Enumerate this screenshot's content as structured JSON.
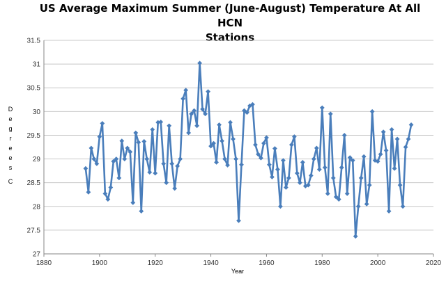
{
  "chart_data": {
    "type": "line",
    "title": {
      "line1": "US Average Maximum Summer (June-August) Temperature At All HCN",
      "line2": "Stations"
    },
    "xlabel": "Year",
    "ylabel_letters": [
      "D",
      "e",
      "g",
      "r",
      "e",
      "e",
      "s",
      "C"
    ],
    "xlim": [
      1880,
      2020
    ],
    "ylim": [
      27,
      31.5
    ],
    "x_ticks": [
      "1880",
      "1900",
      "1920",
      "1940",
      "1960",
      "1980",
      "2000",
      "2020"
    ],
    "y_ticks": [
      "27",
      "27.5",
      "28",
      "28.5",
      "29",
      "29.5",
      "30",
      "30.5",
      "31",
      "31.5"
    ],
    "grid": "horizontal",
    "legend": "none",
    "series_color": "#4A7EBB",
    "x": [
      1895,
      1896,
      1897,
      1898,
      1899,
      1900,
      1901,
      1902,
      1903,
      1904,
      1905,
      1906,
      1907,
      1908,
      1909,
      1910,
      1911,
      1912,
      1913,
      1914,
      1915,
      1916,
      1917,
      1918,
      1919,
      1920,
      1921,
      1922,
      1923,
      1924,
      1925,
      1926,
      1927,
      1928,
      1929,
      1930,
      1931,
      1932,
      1933,
      1934,
      1935,
      1936,
      1937,
      1938,
      1939,
      1940,
      1941,
      1942,
      1943,
      1944,
      1945,
      1946,
      1947,
      1948,
      1949,
      1950,
      1951,
      1952,
      1953,
      1954,
      1955,
      1956,
      1957,
      1958,
      1959,
      1960,
      1961,
      1962,
      1963,
      1964,
      1965,
      1966,
      1967,
      1968,
      1969,
      1970,
      1971,
      1972,
      1973,
      1974,
      1975,
      1976,
      1977,
      1978,
      1979,
      1980,
      1981,
      1982,
      1983,
      1984,
      1985,
      1986,
      1987,
      1988,
      1989,
      1990,
      1991,
      1992,
      1993,
      1994,
      1995,
      1996,
      1997,
      1998,
      1999,
      2000,
      2001,
      2002,
      2003,
      2004,
      2005,
      2006,
      2007,
      2008,
      2009,
      2010,
      2011,
      2012
    ],
    "y": [
      28.8,
      28.3,
      29.23,
      29.0,
      28.9,
      29.47,
      29.75,
      28.27,
      28.15,
      28.4,
      28.95,
      29.0,
      28.6,
      29.38,
      29.0,
      29.23,
      29.15,
      28.08,
      29.55,
      29.35,
      27.9,
      29.37,
      29.0,
      28.72,
      29.62,
      28.7,
      29.77,
      29.78,
      28.9,
      28.5,
      29.7,
      28.9,
      28.38,
      28.85,
      29.0,
      30.27,
      30.45,
      29.55,
      29.95,
      30.02,
      29.7,
      31.02,
      30.05,
      29.95,
      30.42,
      29.27,
      29.33,
      28.93,
      29.72,
      29.38,
      29.0,
      28.87,
      29.77,
      29.42,
      29.0,
      27.7,
      28.88,
      30.02,
      29.98,
      30.12,
      30.15,
      29.3,
      29.1,
      29.02,
      29.33,
      29.45,
      28.88,
      28.62,
      29.22,
      28.78,
      28.0,
      28.97,
      28.4,
      28.6,
      29.3,
      29.47,
      28.7,
      28.5,
      28.93,
      28.43,
      28.45,
      28.65,
      29.0,
      29.23,
      28.78,
      30.08,
      28.82,
      28.27,
      29.95,
      28.6,
      28.2,
      28.15,
      28.82,
      29.5,
      28.27,
      29.03,
      28.97,
      27.37,
      28.0,
      28.6,
      29.05,
      28.05,
      28.45,
      30.0,
      28.97,
      28.95,
      29.1,
      29.57,
      29.18,
      27.9,
      29.62,
      28.8,
      29.42,
      28.45,
      28.0,
      29.25,
      29.42,
      29.72
    ]
  }
}
